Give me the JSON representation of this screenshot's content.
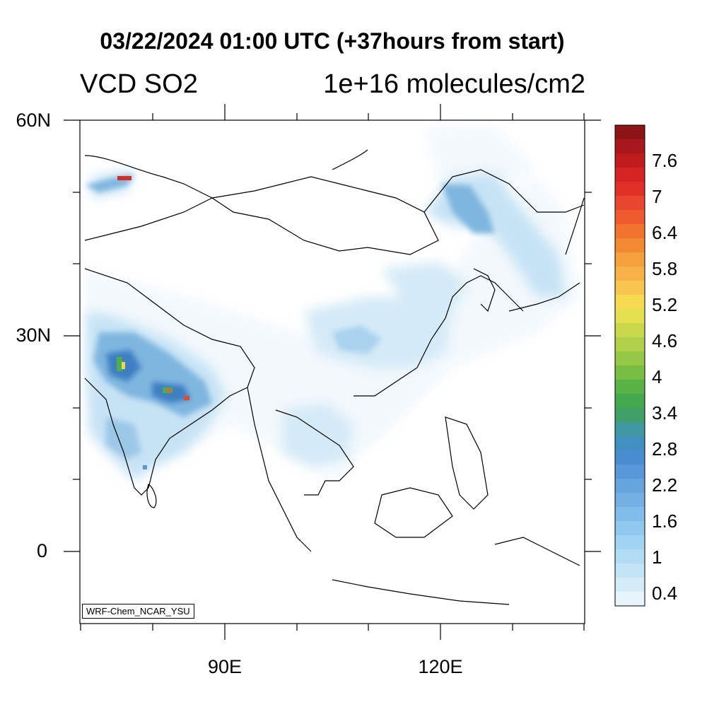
{
  "header": {
    "title": "03/22/2024 01:00 UTC (+37hours from start)",
    "left_label": "VCD SO2",
    "right_label": "1e+16 molecules/cm2"
  },
  "axes": {
    "lat_labels": [
      "60N",
      "30N",
      "0"
    ],
    "lon_labels": [
      "90E",
      "120E"
    ]
  },
  "colorbar": {
    "labels": [
      "7.6",
      "7",
      "6.4",
      "5.8",
      "5.2",
      "4.6",
      "4",
      "3.4",
      "2.8",
      "2.2",
      "1.6",
      "1",
      "0.4"
    ],
    "colors_top_to_bottom": [
      "#8c1414",
      "#a8181a",
      "#c01c1e",
      "#d42424",
      "#e03028",
      "#e8462e",
      "#ee5a2e",
      "#f2732e",
      "#f28a34",
      "#f4a03c",
      "#f6b246",
      "#f8c650",
      "#f6da50",
      "#e4e04e",
      "#cad84c",
      "#b0d04a",
      "#96c848",
      "#78be44",
      "#58b244",
      "#44a84c",
      "#40a066",
      "#4098a0",
      "#4090c0",
      "#4a8cd0",
      "#5898d8",
      "#66a4de",
      "#74b0e4",
      "#82bcea",
      "#90c8ee",
      "#a0d4f2",
      "#b0dcf4",
      "#c2e4f6",
      "#d4ecf8",
      "#e6f4fb"
    ]
  },
  "map": {
    "model_tag": "WRF-Chem_NCAR_YSU",
    "plume_color_low": "#c6e3f5",
    "plume_color_mid": "#7fb6df",
    "plume_color_high": "#3e7fc2",
    "hotspot_colors": [
      "#4fae4c",
      "#f3d54c",
      "#d92a24"
    ]
  }
}
